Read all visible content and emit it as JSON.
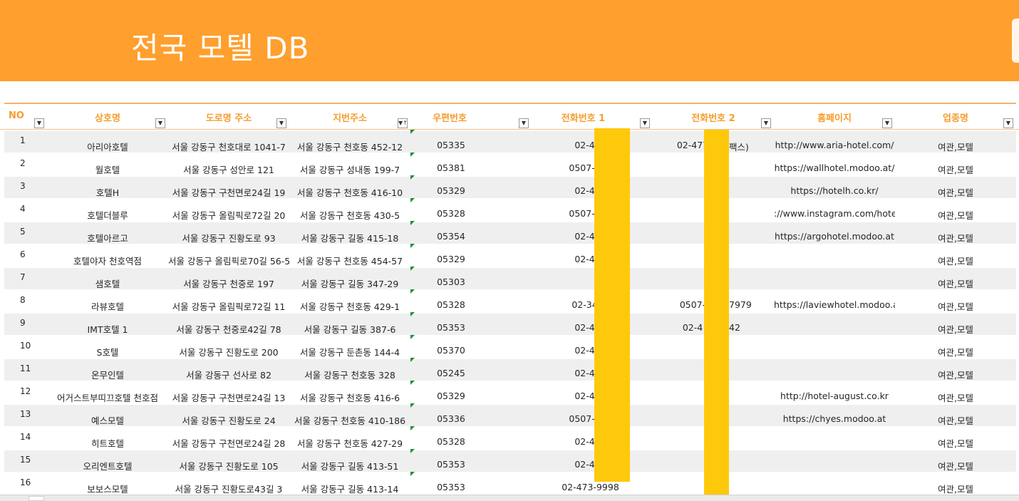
{
  "title": "전국 모텔 DB",
  "headers": [
    "NO",
    "상호명",
    "도로명 주소",
    "지번주소",
    "우편번호",
    "전화번호 1",
    "전화번호 2",
    "홈페이지",
    "업종명"
  ],
  "rows": [
    {
      "no": "1",
      "name": "아리아호텔",
      "road": "서울 강동구 천호대로 1041-7",
      "jibun": "서울 강동구 천호동 452-12",
      "zip": "05335",
      "tel1": "02-477",
      "tel2": "02-477",
      "tel2b": "팩스)",
      "home": "http://www.aria-hotel.com/",
      "type": "여관,모텔"
    },
    {
      "no": "2",
      "name": "월호텔",
      "road": "서울 강동구 성안로 121",
      "jibun": "서울 강동구 성내동 199-7",
      "zip": "05381",
      "tel1": "0507-133",
      "tel2": "",
      "tel2b": "",
      "home": "https://wallhotel.modoo.at/",
      "type": "여관,모텔"
    },
    {
      "no": "3",
      "name": "호텔H",
      "road": "서울 강동구 구천면로24길 19",
      "jibun": "서울 강동구 천호동 416-10",
      "zip": "05329",
      "tel1": "02-476",
      "tel2": "",
      "tel2b": "",
      "home": "https://hotelh.co.kr/",
      "type": "여관,모텔"
    },
    {
      "no": "4",
      "name": "호텔더블루",
      "road": "서울 강동구 올림픽로72길 20",
      "jibun": "서울 강동구 천호동 430-5",
      "zip": "05328",
      "tel1": "0507-132",
      "tel2": "",
      "tel2b": "",
      "home": "://www.instagram.com/hotelth",
      "type": "여관,모텔"
    },
    {
      "no": "5",
      "name": "호텔아르고",
      "road": "서울 강동구 진황도로 93",
      "jibun": "서울 강동구 길동 415-18",
      "zip": "05354",
      "tel1": "02-470",
      "tel2": "",
      "tel2b": "",
      "home": "https://argohotel.modoo.at",
      "type": "여관,모텔"
    },
    {
      "no": "6",
      "name": "호텔야자 천호역점",
      "road": "서울 강동구 올림픽로70길 56-5",
      "jibun": "서울 강동구 천호동 454-57",
      "zip": "05329",
      "tel1": "02-478",
      "tel2": "",
      "tel2b": "",
      "home": "",
      "type": "여관,모텔"
    },
    {
      "no": "7",
      "name": "샘호텔",
      "road": "서울 강동구 천중로 197",
      "jibun": "서울 강동구 길동 347-29",
      "zip": "05303",
      "tel1": "",
      "tel2": "",
      "tel2b": "",
      "home": "",
      "type": "여관,모텔"
    },
    {
      "no": "8",
      "name": "라뷰호텔",
      "road": "서울 강동구 올림픽로72길 11",
      "jibun": "서울 강동구 천호동 429-1",
      "zip": "05328",
      "tel1": "02-3427",
      "tel2": "0507-",
      "tel2b": "7979",
      "home": "https://laviewhotel.modoo.at",
      "type": "여관,모텔"
    },
    {
      "no": "9",
      "name": "IMT호텔 1",
      "road": "서울 강동구 천중로42길 78",
      "jibun": "서울 강동구 길동 387-6",
      "zip": "05353",
      "tel1": "02-489",
      "tel2": "02-4",
      "tel2b": "42",
      "home": "",
      "type": "여관,모텔"
    },
    {
      "no": "10",
      "name": "S호텔",
      "road": "서울 강동구 진황도로 200",
      "jibun": "서울 강동구 둔촌동 144-4",
      "zip": "05370",
      "tel1": "02-482",
      "tel2": "",
      "tel2b": "",
      "home": "",
      "type": "여관,모텔"
    },
    {
      "no": "11",
      "name": "온무인텔",
      "road": "서울 강동구 선사로 82",
      "jibun": "서울 강동구 천호동 328",
      "zip": "05245",
      "tel1": "02-470",
      "tel2": "",
      "tel2b": "",
      "home": "",
      "type": "여관,모텔"
    },
    {
      "no": "12",
      "name": "어거스트부띠끄호텔 천호점",
      "road": "서울 강동구 구천면로24길 13",
      "jibun": "서울 강동구 천호동 416-6",
      "zip": "05329",
      "tel1": "02-470",
      "tel2": "",
      "tel2b": "",
      "home": "http://hotel-august.co.kr",
      "type": "여관,모텔"
    },
    {
      "no": "13",
      "name": "예스모텔",
      "road": "서울 강동구 진황도로 24",
      "jibun": "서울 강동구 천호동 410-186",
      "zip": "05336",
      "tel1": "0507-143",
      "tel2": "",
      "tel2b": "",
      "home": "https://chyes.modoo.at",
      "type": "여관,모텔"
    },
    {
      "no": "14",
      "name": "히트호텔",
      "road": "서울 강동구 구천면로24길 28",
      "jibun": "서울 강동구 천호동 427-29",
      "zip": "05328",
      "tel1": "02-474",
      "tel2": "",
      "tel2b": "",
      "home": "",
      "type": "여관,모텔"
    },
    {
      "no": "15",
      "name": "오리엔트호텔",
      "road": "서울 강동구 진황도로 105",
      "jibun": "서울 강동구 길동 413-51",
      "zip": "05353",
      "tel1": "02-473",
      "tel2": "",
      "tel2b": "",
      "home": "",
      "type": "여관,모텔"
    },
    {
      "no": "16",
      "name": "보보스모텔",
      "road": "서울 강동구 진황도로43길 3",
      "jibun": "서울 강동구 길동 413-14",
      "zip": "05353",
      "tel1": "02-473-9998",
      "tel2": "",
      "tel2b": "",
      "home": "",
      "type": "여관,모텔"
    }
  ],
  "colors": {
    "banner": "#ff9f2e",
    "header_text": "#f59d2e",
    "redaction": "#fec90b",
    "row_alt": "#efefef"
  }
}
